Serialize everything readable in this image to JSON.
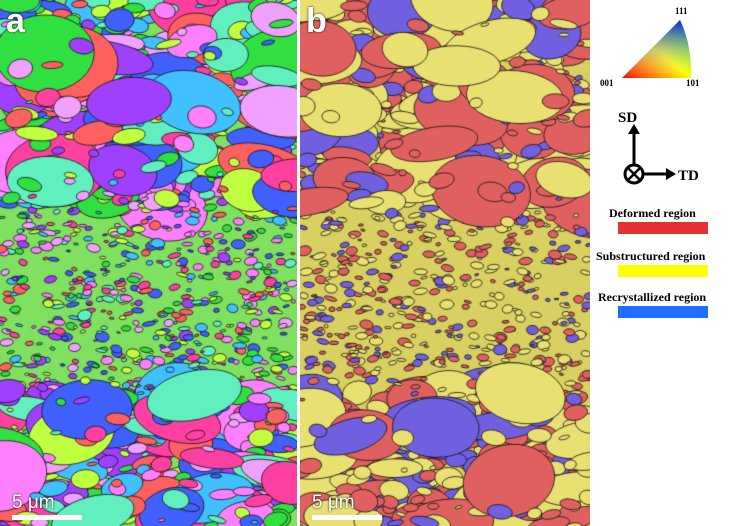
{
  "panels": [
    {
      "label": "a",
      "scale_bar": "5 μm"
    },
    {
      "label": "b",
      "scale_bar": "5 μm"
    }
  ],
  "ipf_key": {
    "corners": [
      "111",
      "001",
      "101"
    ]
  },
  "axes": {
    "vertical": "SD",
    "horizontal": "TD"
  },
  "legend": [
    {
      "label": "Deformed region",
      "color": "#e23232"
    },
    {
      "label": "Substructured region",
      "color": "#ffff00"
    },
    {
      "label": "Recrystallized region",
      "color": "#1f6fff"
    }
  ]
}
